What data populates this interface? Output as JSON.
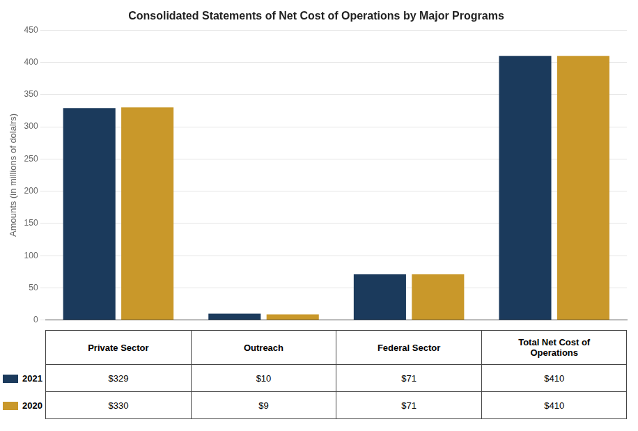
{
  "chart_data": {
    "type": "bar",
    "title": "Consolidated Statements of Net Cost of Operations by Major Programs",
    "categories": [
      "Private Sector",
      "Outreach",
      "Federal Sector",
      "Total Net Cost of\nOperations"
    ],
    "series": [
      {
        "name": "2021",
        "color": "#1B3A5C",
        "values": [
          329,
          10,
          71,
          410
        ],
        "value_labels": [
          "$329",
          "$10",
          "$71",
          "$410"
        ]
      },
      {
        "name": "2020",
        "color": "#C9982A",
        "values": [
          330,
          9,
          71,
          410
        ],
        "value_labels": [
          "$330",
          "$9",
          "$71",
          "$410"
        ]
      }
    ],
    "ylabel": "Amounts (in millions of dolalrs)",
    "ylim": [
      0,
      450
    ],
    "yticks": [
      0,
      50,
      100,
      150,
      200,
      250,
      300,
      350,
      400,
      450
    ],
    "grid": true,
    "tick_labels": "y"
  }
}
